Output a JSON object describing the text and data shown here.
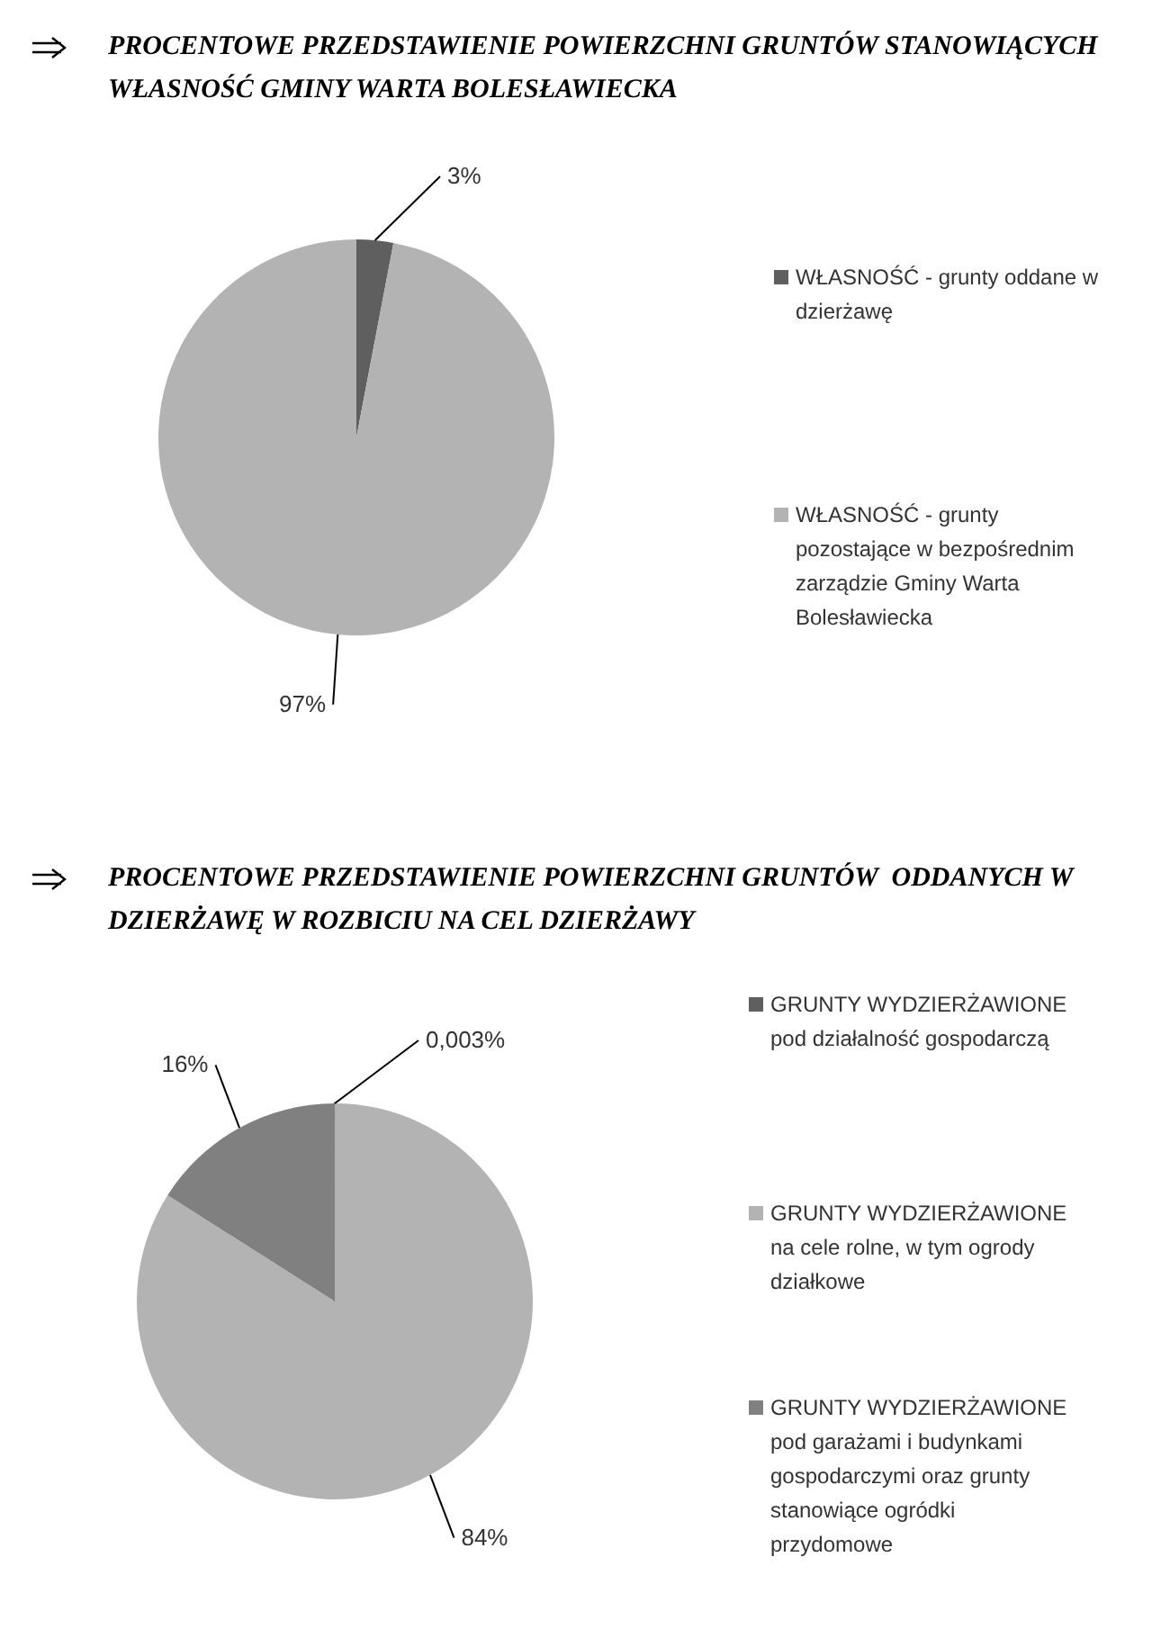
{
  "chart_data": [
    {
      "type": "pie",
      "title": "PROCENTOWE PRZEDSTAWIENIE POWIERZCHNI GRUNTÓW STANOWIĄCYCH WŁASNOŚĆ GMINY WARTA BOLESŁAWIECKA",
      "categories": [
        "WŁASNOŚĆ - grunty oddane w dzierżawę",
        "WŁASNOŚĆ - grunty pozostające w bezpośrednim zarządzie Gminy Warta Bolesławiecka"
      ],
      "values": [
        3,
        97
      ],
      "colors": [
        "#5f5f5f",
        "#b3b3b3"
      ],
      "value_labels": [
        "3%",
        "97%"
      ],
      "legend": "right"
    },
    {
      "type": "pie",
      "title": "PROCENTOWE PRZEDSTAWIENIE POWIERZCHNI GRUNTÓW  ODDANYCH W DZIERŻAWĘ W ROZBICIU NA CEL DZIERŻAWY",
      "categories": [
        "GRUNTY WYDZIERŻAWIONE pod działalność gospodarczą",
        "GRUNTY WYDZIERŻAWIONE na cele rolne, w tym ogrody działkowe",
        "GRUNTY WYDZIERŻAWIONE pod garażami i budynkami gospodarczymi oraz grunty stanowiące ogródki przydomowe"
      ],
      "values": [
        0.003,
        84,
        16
      ],
      "colors": [
        "#5f5f5f",
        "#b3b3b3",
        "#808080"
      ],
      "value_labels": [
        "0,003%",
        "84%",
        "16%"
      ],
      "legend": "right"
    }
  ]
}
